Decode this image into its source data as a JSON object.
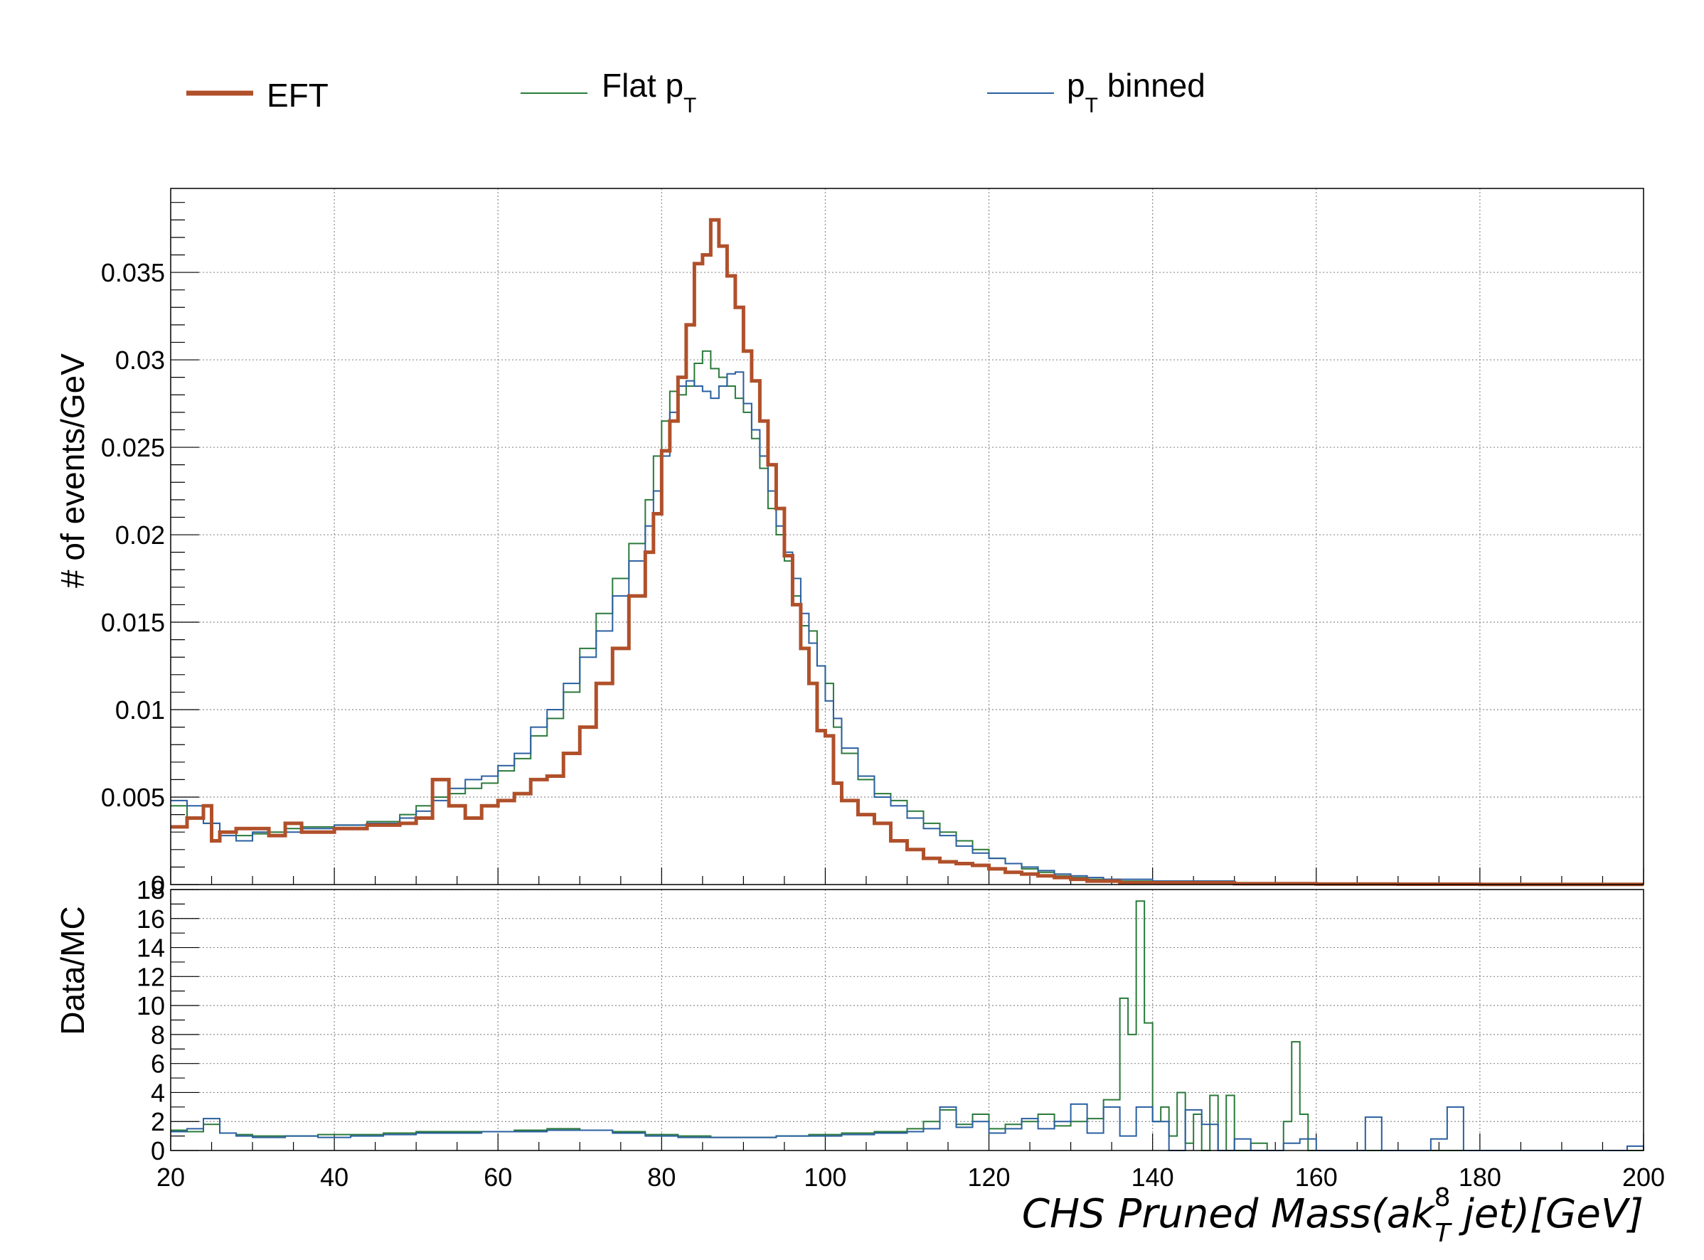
{
  "chart_data": [
    {
      "type": "line",
      "panel": "main",
      "ylabel": "# of events/GeV",
      "xlim": [
        20,
        200
      ],
      "ylim": [
        0,
        0.0398
      ],
      "yticks": [
        "0",
        "0.005",
        "0.01",
        "0.015",
        "0.02",
        "0.025",
        "0.03",
        "0.035"
      ],
      "grid": true,
      "step": true,
      "legend_position": "top",
      "series": [
        {
          "name": "EFT",
          "color": "#b0502a",
          "width": 5,
          "x": [
            20,
            22,
            24,
            25,
            26,
            28,
            30,
            32,
            34,
            36,
            40,
            44,
            48,
            50,
            52,
            54,
            56,
            58,
            60,
            62,
            64,
            66,
            68,
            70,
            72,
            74,
            76,
            78,
            79,
            80,
            81,
            82,
            83,
            84,
            85,
            86,
            87,
            88,
            89,
            90,
            91,
            92,
            93,
            94,
            95,
            96,
            97,
            98,
            99,
            100,
            101,
            102,
            104,
            106,
            108,
            110,
            112,
            114,
            116,
            118,
            120,
            122,
            124,
            126,
            128,
            130,
            132,
            134,
            136,
            140,
            150,
            160,
            170,
            180,
            190,
            200
          ],
          "y": [
            0.0033,
            0.0038,
            0.0045,
            0.0025,
            0.003,
            0.0032,
            0.0032,
            0.0028,
            0.0035,
            0.003,
            0.0032,
            0.0034,
            0.0035,
            0.0038,
            0.006,
            0.0045,
            0.0038,
            0.0045,
            0.0048,
            0.0052,
            0.006,
            0.0062,
            0.0075,
            0.009,
            0.0115,
            0.0135,
            0.0165,
            0.019,
            0.0212,
            0.0248,
            0.0265,
            0.029,
            0.032,
            0.0355,
            0.036,
            0.038,
            0.0365,
            0.0348,
            0.033,
            0.0305,
            0.0288,
            0.0265,
            0.024,
            0.0215,
            0.0188,
            0.016,
            0.0135,
            0.0115,
            0.0088,
            0.0085,
            0.0058,
            0.0048,
            0.004,
            0.0035,
            0.0025,
            0.002,
            0.0015,
            0.0013,
            0.0012,
            0.0011,
            0.0009,
            0.0007,
            0.0006,
            0.0005,
            0.0004,
            0.0003,
            0.0002,
            0.0002,
            0.0001,
            0.0001,
            5e-05,
            3e-05,
            2e-05,
            1e-05,
            1e-05,
            1e-05
          ]
        },
        {
          "name": "Flat p_T",
          "color": "#2a7a3a",
          "width": 2,
          "x": [
            20,
            22,
            24,
            26,
            28,
            30,
            32,
            34,
            36,
            40,
            44,
            48,
            50,
            52,
            54,
            56,
            58,
            60,
            62,
            64,
            66,
            68,
            70,
            72,
            74,
            76,
            78,
            79,
            80,
            81,
            82,
            83,
            84,
            85,
            86,
            87,
            88,
            89,
            90,
            91,
            92,
            93,
            94,
            95,
            96,
            97,
            98,
            99,
            100,
            101,
            102,
            104,
            106,
            108,
            110,
            112,
            114,
            116,
            118,
            120,
            122,
            124,
            126,
            128,
            130,
            132,
            134,
            136,
            140,
            150,
            160,
            170,
            180,
            190,
            200
          ],
          "y": [
            0.0045,
            0.0038,
            0.0035,
            0.003,
            0.0028,
            0.0029,
            0.003,
            0.0032,
            0.0033,
            0.0034,
            0.0036,
            0.004,
            0.0045,
            0.005,
            0.0052,
            0.0055,
            0.0058,
            0.0065,
            0.0072,
            0.0085,
            0.0095,
            0.011,
            0.0135,
            0.0155,
            0.0175,
            0.0195,
            0.022,
            0.0245,
            0.0265,
            0.0282,
            0.028,
            0.0285,
            0.0298,
            0.0305,
            0.0295,
            0.029,
            0.0285,
            0.0278,
            0.027,
            0.0255,
            0.0238,
            0.0215,
            0.02,
            0.0185,
            0.0165,
            0.0148,
            0.0145,
            0.0125,
            0.0115,
            0.009,
            0.0075,
            0.006,
            0.0052,
            0.0048,
            0.0042,
            0.0035,
            0.003,
            0.0025,
            0.002,
            0.0015,
            0.0012,
            0.0009,
            0.0007,
            0.0005,
            0.0004,
            0.0003,
            0.0003,
            0.0002,
            0.0002,
            0.0001,
            5e-05,
            4e-05,
            3e-05,
            2e-05,
            2e-05
          ]
        },
        {
          "name": "p_T binned",
          "color": "#2a5fa0",
          "width": 2,
          "x": [
            20,
            22,
            24,
            26,
            28,
            30,
            32,
            34,
            36,
            40,
            44,
            48,
            50,
            52,
            54,
            56,
            58,
            60,
            62,
            64,
            66,
            68,
            70,
            72,
            74,
            76,
            78,
            79,
            80,
            81,
            82,
            83,
            84,
            85,
            86,
            87,
            88,
            89,
            90,
            91,
            92,
            93,
            94,
            95,
            96,
            97,
            98,
            99,
            100,
            101,
            102,
            104,
            106,
            108,
            110,
            112,
            114,
            116,
            118,
            120,
            122,
            124,
            126,
            128,
            130,
            132,
            134,
            136,
            140,
            150,
            160,
            170,
            180,
            190,
            200
          ],
          "y": [
            0.0048,
            0.0045,
            0.0035,
            0.0028,
            0.0025,
            0.003,
            0.0028,
            0.003,
            0.0032,
            0.0034,
            0.0035,
            0.0038,
            0.0042,
            0.0048,
            0.0055,
            0.006,
            0.0062,
            0.0068,
            0.0075,
            0.009,
            0.01,
            0.0115,
            0.013,
            0.0145,
            0.0165,
            0.0185,
            0.0205,
            0.0225,
            0.0245,
            0.027,
            0.0285,
            0.0288,
            0.0285,
            0.0282,
            0.0278,
            0.0285,
            0.0292,
            0.0293,
            0.0275,
            0.026,
            0.0245,
            0.0225,
            0.0205,
            0.019,
            0.0175,
            0.0155,
            0.0138,
            0.0125,
            0.0105,
            0.0095,
            0.0078,
            0.0062,
            0.005,
            0.0045,
            0.0038,
            0.0032,
            0.0028,
            0.0022,
            0.0018,
            0.0015,
            0.0012,
            0.001,
            0.0008,
            0.0006,
            0.0005,
            0.0004,
            0.0003,
            0.0003,
            0.0002,
            0.0001,
            8e-05,
            5e-05,
            4e-05,
            3e-05,
            3e-05
          ]
        }
      ]
    },
    {
      "type": "line",
      "panel": "ratio",
      "ylabel": "Data/MC",
      "xlabel": "CHS  Pruned  Mass(ak",
      "xlabel_sup": "8",
      "xlabel_sub": "T",
      "xlabel_tail": "  jet)[GeV]",
      "xlim": [
        20,
        200
      ],
      "ylim": [
        0,
        18
      ],
      "xticks": [
        "20",
        "40",
        "60",
        "80",
        "100",
        "120",
        "140",
        "160",
        "180",
        "200"
      ],
      "yticks": [
        "0",
        "2",
        "4",
        "6",
        "8",
        "10",
        "12",
        "14",
        "16",
        "18"
      ],
      "grid": true,
      "step": true,
      "series": [
        {
          "name": "Flat p_T",
          "color": "#2a7a3a",
          "width": 2,
          "x": [
            20,
            22,
            24,
            26,
            28,
            30,
            34,
            38,
            42,
            46,
            50,
            54,
            58,
            62,
            66,
            70,
            74,
            78,
            82,
            86,
            90,
            94,
            98,
            102,
            106,
            110,
            112,
            114,
            116,
            118,
            120,
            122,
            124,
            126,
            128,
            130,
            132,
            134,
            136,
            137,
            138,
            139,
            140,
            141,
            142,
            143,
            144,
            145,
            146,
            147,
            148,
            149,
            150,
            152,
            154,
            156,
            157,
            158,
            159,
            160,
            200
          ],
          "y": [
            1.4,
            1.3,
            1.8,
            1.2,
            1.1,
            1.0,
            1.0,
            1.1,
            1.1,
            1.2,
            1.3,
            1.3,
            1.3,
            1.4,
            1.5,
            1.4,
            1.3,
            1.1,
            1.0,
            0.9,
            0.9,
            1.0,
            1.1,
            1.2,
            1.3,
            1.5,
            2.0,
            2.8,
            1.8,
            2.5,
            1.5,
            1.8,
            2.0,
            2.5,
            1.7,
            2.0,
            2.2,
            3.5,
            10.5,
            8.0,
            17.2,
            8.8,
            2.0,
            3.0,
            1.0,
            4.0,
            0.5,
            2.5,
            0.0,
            3.8,
            0.0,
            3.8,
            0.0,
            0.5,
            0.0,
            2.0,
            7.5,
            2.5,
            0.0,
            0.0,
            0.0
          ]
        },
        {
          "name": "p_T binned",
          "color": "#2a5fa0",
          "width": 2,
          "x": [
            20,
            22,
            24,
            26,
            28,
            30,
            34,
            38,
            42,
            46,
            50,
            54,
            58,
            62,
            66,
            70,
            74,
            78,
            82,
            86,
            90,
            94,
            98,
            102,
            106,
            110,
            112,
            114,
            116,
            118,
            120,
            122,
            124,
            126,
            128,
            130,
            132,
            134,
            136,
            138,
            140,
            142,
            144,
            146,
            148,
            150,
            152,
            154,
            156,
            158,
            160,
            164,
            166,
            168,
            172,
            174,
            176,
            178,
            198,
            200
          ],
          "y": [
            1.3,
            1.5,
            2.2,
            1.2,
            1.0,
            0.9,
            1.0,
            0.9,
            1.0,
            1.1,
            1.2,
            1.2,
            1.3,
            1.3,
            1.4,
            1.4,
            1.2,
            1.0,
            0.9,
            0.9,
            0.9,
            1.0,
            1.0,
            1.1,
            1.2,
            1.3,
            1.5,
            3.0,
            1.6,
            2.0,
            1.2,
            1.5,
            2.2,
            1.5,
            2.0,
            3.2,
            1.2,
            3.0,
            1.0,
            3.0,
            2.0,
            0.0,
            2.8,
            1.8,
            0.0,
            0.8,
            0.0,
            0.0,
            0.5,
            0.8,
            0.0,
            0.0,
            2.3,
            0.0,
            0.0,
            0.8,
            3.0,
            0.0,
            0.3,
            0.0
          ]
        }
      ]
    }
  ],
  "legend": [
    {
      "label": "EFT",
      "color": "#b0502a",
      "width": 5
    },
    {
      "label": "Flat p",
      "sub": "T",
      "color": "#2a7a3a",
      "width": 2
    },
    {
      "label": "p",
      "sub": "T",
      "tail": " binned",
      "color": "#2a5fa0",
      "width": 2
    }
  ]
}
